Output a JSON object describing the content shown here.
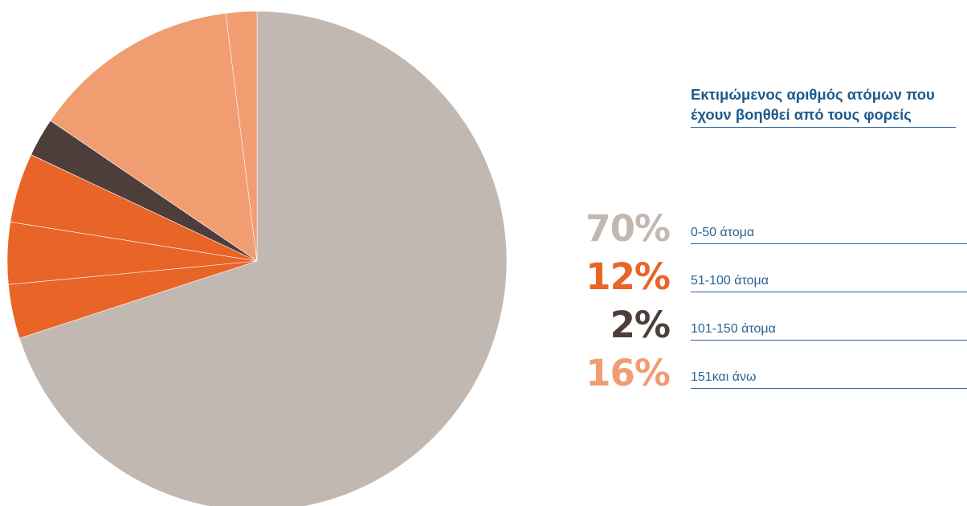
{
  "chart_data": {
    "type": "pie",
    "title": "Εκτιμώμενος αριθμός ατόμων που έχουν βοηθθεί από τους φορείς",
    "legend_position": "right",
    "series": [
      {
        "name": "0-50 άτομα",
        "value": 70,
        "percent_label": "70%",
        "color": "#c2b8b2"
      },
      {
        "name": "51-100 άτομα",
        "value": 12,
        "percent_label": "12%",
        "color": "#e96427"
      },
      {
        "name": "101-150 άτομα",
        "value": 2,
        "percent_label": "2%",
        "color": "#4e3e3b"
      },
      {
        "name": "151και άνω",
        "value": 16,
        "percent_label": "16%",
        "color": "#f09d72"
      }
    ],
    "slices": [
      {
        "category": "0-50 άτομα",
        "value": 70
      },
      {
        "category": "51-100 άτομα",
        "value": 3.5
      },
      {
        "category": "51-100 άτομα",
        "value": 4.0
      },
      {
        "category": "51-100 άτομα",
        "value": 4.5
      },
      {
        "category": "101-150 άτομα",
        "value": 2.5
      },
      {
        "category": "151και άνω",
        "value": 13.5
      },
      {
        "category": "151και άνω",
        "value": 2.0
      }
    ]
  }
}
